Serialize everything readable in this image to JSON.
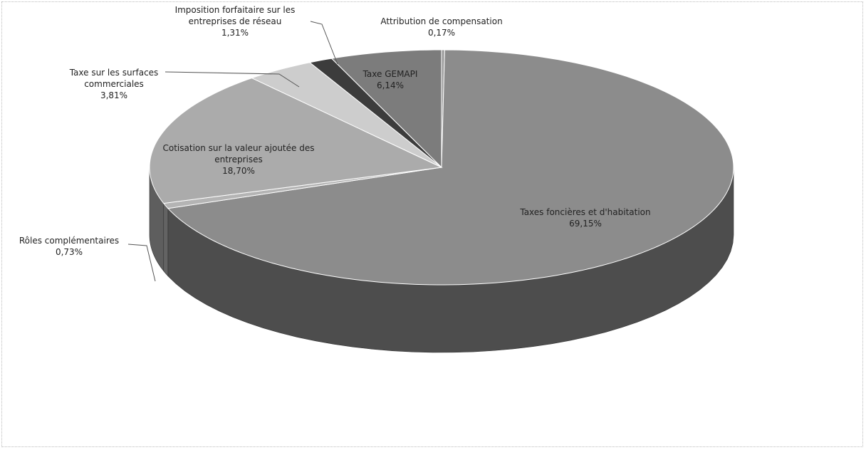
{
  "chart_data": {
    "type": "pie",
    "categories": [
      "Attribution de compensation",
      "Taxes foncières et d'habitation",
      "Rôles complémentaires",
      "Cotisation sur la valeur ajoutée des entreprises",
      "Taxe sur les surfaces commerciales",
      "Imposition forfaitaire sur les entreprises de réseau",
      "Taxe GEMAPI"
    ],
    "values": [
      0.17,
      69.15,
      0.73,
      18.7,
      3.81,
      1.31,
      6.14
    ],
    "value_labels": [
      "0,17%",
      "69,15%",
      "0,73%",
      "18,70%",
      "3,81%",
      "1,31%",
      "6,14%"
    ],
    "colors": [
      "#9a9a9a",
      "#8c8c8c",
      "#b4b4b4",
      "#ababab",
      "#cdcdcd",
      "#3c3c3c",
      "#7c7c7c"
    ]
  }
}
